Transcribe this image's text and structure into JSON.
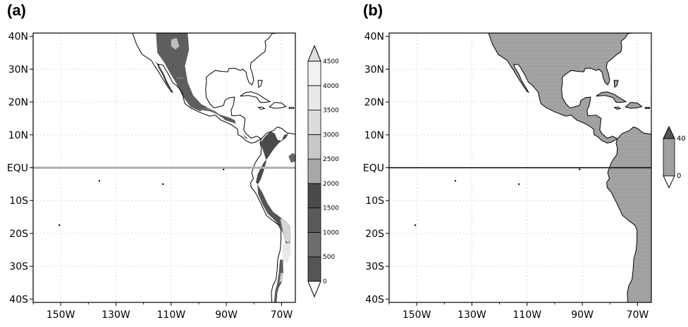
{
  "panels": [
    {
      "label": "(a)",
      "lat_labels": [
        "40N",
        "30N",
        "20N",
        "10N",
        "EQU",
        "10S",
        "20S",
        "30S",
        "40S"
      ],
      "lon_labels": [
        "150W",
        "130W",
        "110W",
        "90W",
        "70W"
      ],
      "colorbar": {
        "levels": [
          "0",
          "500",
          "1000",
          "1500",
          "2000",
          "2500",
          "3000",
          "3500",
          "4000",
          "4500"
        ],
        "shades": [
          "#ffffff",
          "#555555",
          "#6e6e6e",
          "#5a5a5a",
          "#4a4a4a",
          "#a8a8a8",
          "#c8c8c8",
          "#dcdcdc",
          "#e8e8e8",
          "#f2f2f2",
          "#e0e0e0"
        ]
      },
      "equator_color": "#b0b0b0"
    },
    {
      "label": "(b)",
      "lat_labels": [
        "40N",
        "30N",
        "20N",
        "10N",
        "EQU",
        "10S",
        "20S",
        "30S",
        "40S"
      ],
      "lon_labels": [
        "150W",
        "130W",
        "110W",
        "90W",
        "70W"
      ],
      "colorbar": {
        "levels": [
          "0",
          "40"
        ],
        "shades": [
          "#ffffff",
          "#a0a0a0",
          "#555555"
        ]
      },
      "equator_color": "#000000",
      "land_color": "#a0a0a0"
    }
  ]
}
